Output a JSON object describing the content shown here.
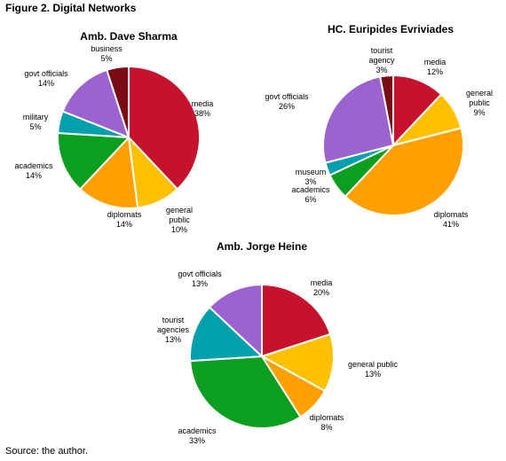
{
  "figure": {
    "title": "Figure 2. Digital Networks",
    "source": "Source: the author."
  },
  "chart_data": [
    {
      "type": "pie",
      "title": "Amb. Dave Sharma",
      "slices": [
        {
          "label": [
            "media"
          ],
          "value": 38,
          "pct_text": "38%",
          "color": "#c4122f"
        },
        {
          "label": [
            "general",
            "public"
          ],
          "value": 10,
          "pct_text": "10%",
          "color": "#ffc000"
        },
        {
          "label": [
            "diplomats"
          ],
          "value": 14,
          "pct_text": "14%",
          "color": "#ffa000"
        },
        {
          "label": [
            "academics"
          ],
          "value": 14,
          "pct_text": "14%",
          "color": "#0c9e1e"
        },
        {
          "label": [
            "military"
          ],
          "value": 5,
          "pct_text": "5%",
          "color": "#00a0ac"
        },
        {
          "label": [
            "govt officials"
          ],
          "value": 14,
          "pct_text": "14%",
          "color": "#9c62cf"
        },
        {
          "label": [
            "business"
          ],
          "value": 5,
          "pct_text": "5%",
          "color": "#7b0c16"
        }
      ]
    },
    {
      "type": "pie",
      "title": "HC. Euripides Evriviades",
      "slices": [
        {
          "label": [
            "media"
          ],
          "value": 12,
          "pct_text": "12%",
          "color": "#c4122f"
        },
        {
          "label": [
            "general",
            "public"
          ],
          "value": 9,
          "pct_text": "9%",
          "color": "#ffc000"
        },
        {
          "label": [
            "diplomats"
          ],
          "value": 41,
          "pct_text": "41%",
          "color": "#ffa000"
        },
        {
          "label": [
            "academics"
          ],
          "value": 6,
          "pct_text": "6%",
          "color": "#0c9e1e"
        },
        {
          "label": [
            "museum"
          ],
          "value": 3,
          "pct_text": "3%",
          "color": "#00a0ac"
        },
        {
          "label": [
            "govt officials"
          ],
          "value": 26,
          "pct_text": "26%",
          "color": "#9c62cf"
        },
        {
          "label": [
            "tourist",
            "agency"
          ],
          "value": 3,
          "pct_text": "3%",
          "color": "#7b0c16"
        }
      ]
    },
    {
      "type": "pie",
      "title": "Amb. Jorge Heine",
      "slices": [
        {
          "label": [
            "media"
          ],
          "value": 20,
          "pct_text": "20%",
          "color": "#c4122f"
        },
        {
          "label": [
            "general public"
          ],
          "value": 13,
          "pct_text": "13%",
          "color": "#ffc000"
        },
        {
          "label": [
            "diplomats"
          ],
          "value": 8,
          "pct_text": "8%",
          "color": "#ffa000"
        },
        {
          "label": [
            "academics"
          ],
          "value": 33,
          "pct_text": "33%",
          "color": "#0c9e1e"
        },
        {
          "label": [
            "tourist",
            "agencies"
          ],
          "value": 13,
          "pct_text": "13%",
          "color": "#00a0ac"
        },
        {
          "label": [
            "govt officials"
          ],
          "value": 13,
          "pct_text": "13%",
          "color": "#9c62cf"
        }
      ]
    }
  ]
}
